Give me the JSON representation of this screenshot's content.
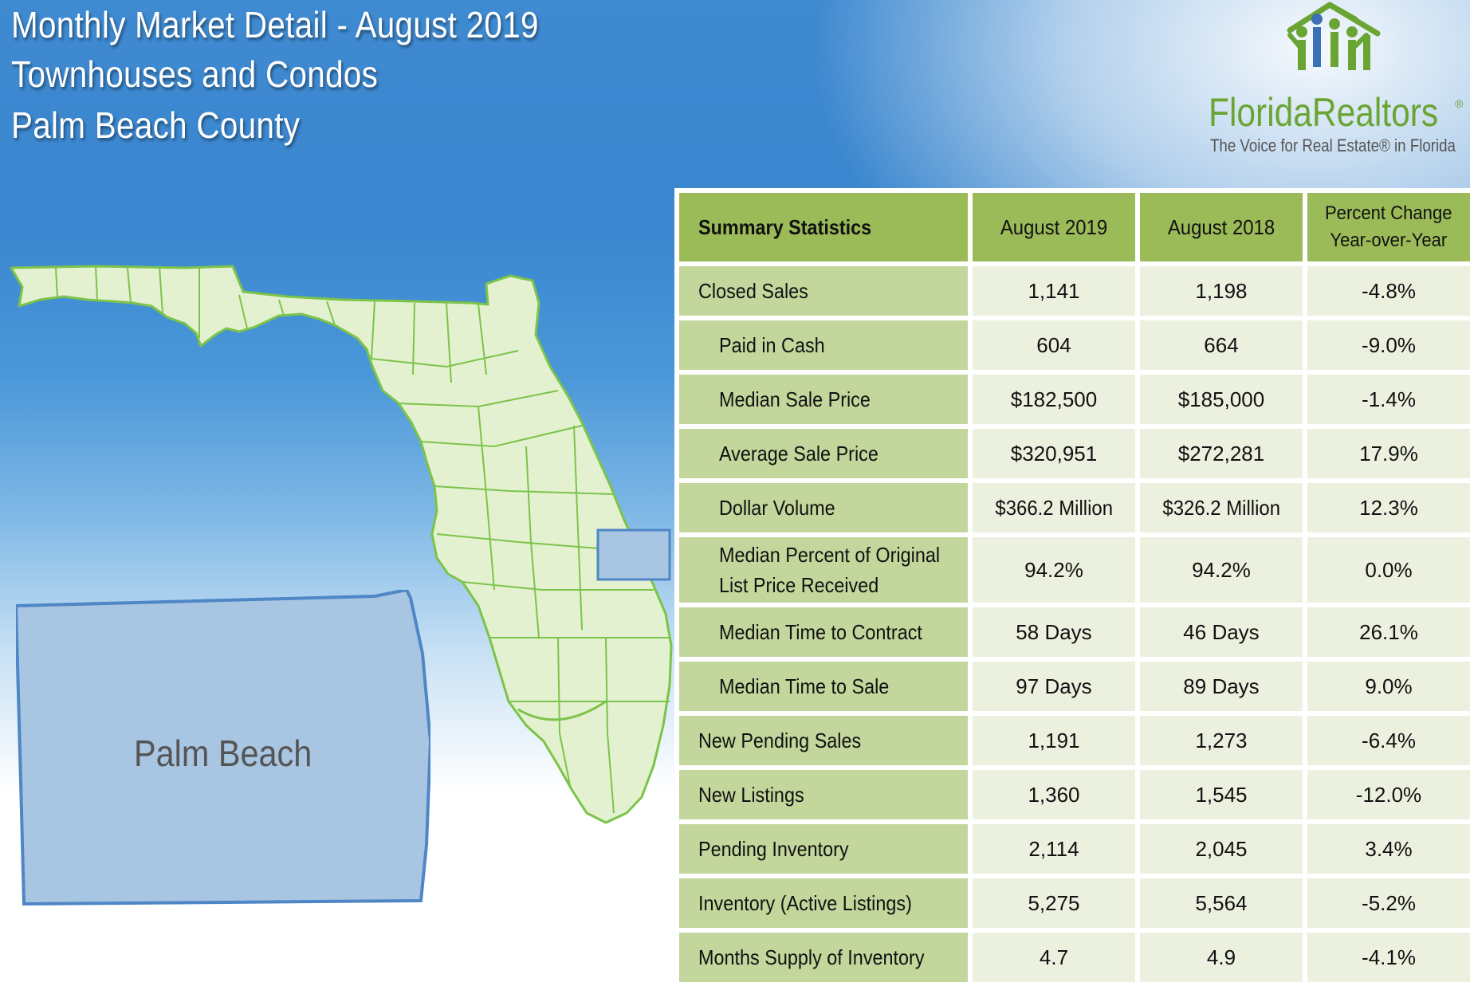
{
  "header": {
    "title_line1": "Monthly Market Detail - August 2019",
    "title_line2": "Townhouses and Condos",
    "title_line3": "Palm Beach County"
  },
  "logo": {
    "brand_text": "FloridaRealtors",
    "registered_mark": "®",
    "tagline": "The Voice for Real Estate® in Florida",
    "icon": "florida-realtors-logo-icon"
  },
  "map": {
    "county_label": "Palm Beach",
    "state_fill": "#e3f1d0",
    "state_stroke": "#7cc34a",
    "county_fill": "#a8c5e2",
    "county_stroke": "#4f86c6"
  },
  "table": {
    "headers": {
      "statistic": "Summary Statistics",
      "current": "August 2019",
      "previous": "August 2018",
      "change_line1": "Percent Change",
      "change_line2": "Year-over-Year"
    },
    "rows": [
      {
        "label": "Closed Sales",
        "current": "1,141",
        "previous": "1,198",
        "change": "-4.8%"
      },
      {
        "label": "Paid in Cash",
        "current": "604",
        "previous": "664",
        "change": "-9.0%"
      },
      {
        "label": "Median Sale Price",
        "current": "$182,500",
        "previous": "$185,000",
        "change": "-1.4%"
      },
      {
        "label": "Average Sale Price",
        "current": "$320,951",
        "previous": "$272,281",
        "change": "17.9%"
      },
      {
        "label": "Dollar Volume",
        "current": "$366.2 Million",
        "previous": "$326.2 Million",
        "change": "12.3%"
      },
      {
        "label_line1": "Median Percent of Original",
        "label_line2": "List Price Received",
        "current": "94.2%",
        "previous": "94.2%",
        "change": "0.0%"
      },
      {
        "label": "Median Time to Contract",
        "current": "58 Days",
        "previous": "46 Days",
        "change": "26.1%"
      },
      {
        "label": "Median Time to Sale",
        "current": "97 Days",
        "previous": "89 Days",
        "change": "9.0%"
      },
      {
        "label": "New Pending Sales",
        "current": "1,191",
        "previous": "1,273",
        "change": "-6.4%"
      },
      {
        "label": "New Listings",
        "current": "1,360",
        "previous": "1,545",
        "change": "-12.0%"
      },
      {
        "label": "Pending Inventory",
        "current": "2,114",
        "previous": "2,045",
        "change": "3.4%"
      },
      {
        "label": "Inventory (Active Listings)",
        "current": "5,275",
        "previous": "5,564",
        "change": "-5.2%"
      },
      {
        "label": "Months Supply of Inventory",
        "current": "4.7",
        "previous": "4.9",
        "change": "-4.1%"
      }
    ]
  }
}
